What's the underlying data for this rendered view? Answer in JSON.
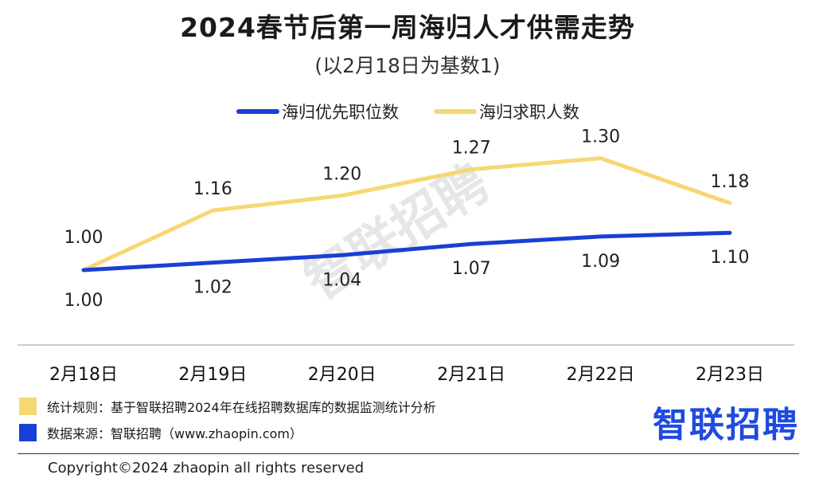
{
  "title": "2024春节后第一周海归人才供需走势",
  "subtitle": "(以2月18日为基数1)",
  "watermark": "智联招聘",
  "chart_data": {
    "type": "line",
    "title": "2024春节后第一周海归人才供需走势",
    "subtitle": "(以2月18日为基数1)",
    "categories": [
      "2月18日",
      "2月19日",
      "2月20日",
      "2月21日",
      "2月22日",
      "2月23日"
    ],
    "series": [
      {
        "name": "海归优先职位数",
        "color": "#1a3fd6",
        "values": [
          1.0,
          1.02,
          1.04,
          1.07,
          1.09,
          1.1
        ],
        "labels": [
          "1.00",
          "1.02",
          "1.04",
          "1.07",
          "1.09",
          "1.10"
        ]
      },
      {
        "name": "海归求职人数",
        "color": "#f7d774",
        "values": [
          1.0,
          1.16,
          1.2,
          1.27,
          1.3,
          1.18
        ],
        "labels": [
          "1.00",
          "1.16",
          "1.20",
          "1.27",
          "1.30",
          "1.18"
        ]
      }
    ],
    "xlabel": "",
    "ylabel": "",
    "grid": false,
    "legend": "top-center"
  },
  "footer": {
    "rule_note": "统计规则：基于智联招聘2024年在线招聘数据库的数据监测统计分析",
    "source_note": "数据来源：智联招聘（www.zhaopin.com）",
    "rule_color": "#f7d774",
    "source_color": "#1a3fd6",
    "logo": "智联招聘",
    "copyright": "Copyright©2024 zhaopin all rights reserved"
  }
}
